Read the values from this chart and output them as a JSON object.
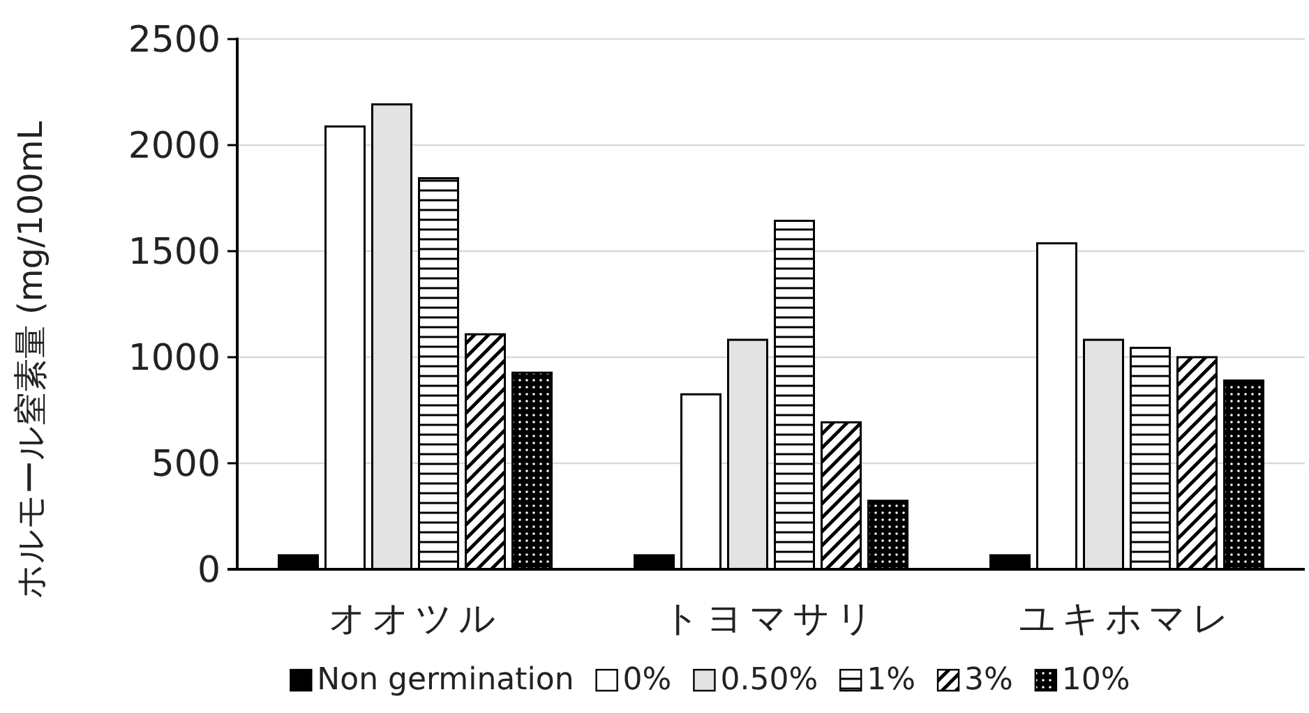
{
  "chart_data": {
    "type": "bar",
    "ylabel": "ホルモール窒素量 (mg/100mL",
    "categories": [
      "オオツル",
      "トヨマサリ",
      "ユキホマレ"
    ],
    "series": [
      {
        "name": "Non germination",
        "color": "#000000",
        "values": [
          66,
          66,
          66
        ]
      },
      {
        "name": "0%",
        "color": "#ffffff",
        "values": [
          2088,
          825,
          1537
        ]
      },
      {
        "name": "0.50%",
        "color": "#e3e3e3",
        "values": [
          2192,
          1082,
          1082
        ]
      },
      {
        "name": "1%",
        "color": "#000000",
        "values": [
          1844,
          1643,
          1044
        ]
      },
      {
        "name": "3%",
        "color": "#000000",
        "values": [
          1108,
          693,
          1000
        ]
      },
      {
        "name": "10%",
        "color": "#000000",
        "values": [
          927,
          323,
          890
        ]
      }
    ],
    "ylim": [
      0,
      2500
    ],
    "yticks": [
      0,
      500,
      1000,
      1500,
      2000,
      2500
    ],
    "grid": "y",
    "legend": "bottom"
  }
}
